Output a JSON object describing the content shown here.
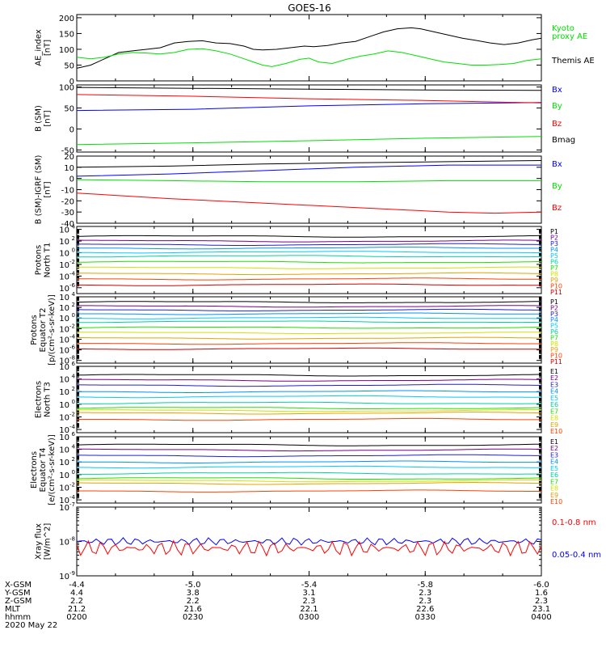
{
  "title": "GOES-16",
  "colors": {
    "black": "#000000",
    "blue": "#0000ff",
    "green": "#00e000",
    "red": "#ff0000",
    "P": [
      "#000000",
      "#7a008a",
      "#2020d0",
      "#0090ff",
      "#00c8ff",
      "#00d0a0",
      "#20e000",
      "#d0e000",
      "#e8a000",
      "#ff4000",
      "#d00000"
    ],
    "E": [
      "#000000",
      "#7a008a",
      "#2020d0",
      "#0090ff",
      "#00c8ff",
      "#00d0a0",
      "#20e000",
      "#d0e000",
      "#e8a000",
      "#ff4000",
      "#d00000"
    ]
  },
  "chart_data": [
    {
      "id": "ae",
      "type": "line",
      "ylabel": [
        "AE_index",
        "[nT]"
      ],
      "yticks": [
        "200",
        "150",
        "100",
        "50",
        "0"
      ],
      "ytick_values": [
        200,
        150,
        100,
        50,
        0
      ],
      "ylim": [
        0,
        210
      ],
      "legend": [
        {
          "text": "Kyoto",
          "color": "green"
        },
        {
          "text": "proxy AE",
          "color": "green"
        },
        {
          "text": "Themis AE",
          "color": "black"
        }
      ],
      "series": [
        {
          "name": "Themis AE",
          "color": "black",
          "points": [
            [
              0,
              40
            ],
            [
              3,
              50
            ],
            [
              6,
              70
            ],
            [
              9,
              90
            ],
            [
              12,
              95
            ],
            [
              15,
              100
            ],
            [
              18,
              105
            ],
            [
              21,
              120
            ],
            [
              24,
              125
            ],
            [
              27,
              127
            ],
            [
              30,
              120
            ],
            [
              33,
              118
            ],
            [
              36,
              110
            ],
            [
              38,
              100
            ],
            [
              40,
              98
            ],
            [
              43,
              100
            ],
            [
              46,
              105
            ],
            [
              49,
              110
            ],
            [
              51,
              108
            ],
            [
              54,
              112
            ],
            [
              57,
              120
            ],
            [
              60,
              125
            ],
            [
              63,
              140
            ],
            [
              66,
              155
            ],
            [
              69,
              165
            ],
            [
              72,
              168
            ],
            [
              74,
              165
            ],
            [
              77,
              155
            ],
            [
              80,
              145
            ],
            [
              83,
              135
            ],
            [
              86,
              128
            ],
            [
              89,
              120
            ],
            [
              92,
              115
            ],
            [
              95,
              120
            ],
            [
              98,
              130
            ],
            [
              100,
              135
            ]
          ]
        },
        {
          "name": "Kyoto proxy AE",
          "color": "green",
          "points": [
            [
              0,
              75
            ],
            [
              3,
              70
            ],
            [
              6,
              75
            ],
            [
              9,
              85
            ],
            [
              12,
              90
            ],
            [
              15,
              88
            ],
            [
              18,
              85
            ],
            [
              21,
              90
            ],
            [
              24,
              100
            ],
            [
              27,
              102
            ],
            [
              30,
              95
            ],
            [
              33,
              85
            ],
            [
              36,
              70
            ],
            [
              38,
              60
            ],
            [
              40,
              50
            ],
            [
              42,
              45
            ],
            [
              45,
              55
            ],
            [
              48,
              68
            ],
            [
              50,
              72
            ],
            [
              52,
              60
            ],
            [
              55,
              55
            ],
            [
              58,
              68
            ],
            [
              61,
              78
            ],
            [
              64,
              85
            ],
            [
              67,
              95
            ],
            [
              70,
              90
            ],
            [
              73,
              80
            ],
            [
              76,
              70
            ],
            [
              79,
              60
            ],
            [
              82,
              55
            ],
            [
              85,
              50
            ],
            [
              88,
              50
            ],
            [
              91,
              52
            ],
            [
              94,
              55
            ],
            [
              97,
              65
            ],
            [
              100,
              70
            ]
          ]
        }
      ]
    },
    {
      "id": "b",
      "type": "line",
      "ylabel": [
        "B (SM)",
        "[nT]"
      ],
      "yticks": [
        "100",
        "50",
        "0",
        "-50"
      ],
      "ytick_values": [
        100,
        50,
        0,
        -50
      ],
      "ylim": [
        -55,
        105
      ],
      "legend": [
        {
          "text": "Bx",
          "color": "blue"
        },
        {
          "text": "By",
          "color": "green"
        },
        {
          "text": "Bz",
          "color": "red"
        },
        {
          "text": "Bmag",
          "color": "black"
        }
      ],
      "series": [
        {
          "name": "Bx",
          "color": "blue",
          "points": [
            [
              0,
              44
            ],
            [
              25,
              47
            ],
            [
              50,
              55
            ],
            [
              75,
              60
            ],
            [
              100,
              63
            ]
          ]
        },
        {
          "name": "By",
          "color": "green",
          "points": [
            [
              0,
              -37
            ],
            [
              25,
              -33
            ],
            [
              50,
              -28
            ],
            [
              75,
              -22
            ],
            [
              100,
              -18
            ]
          ]
        },
        {
          "name": "Bz",
          "color": "red",
          "points": [
            [
              0,
              82
            ],
            [
              25,
              78
            ],
            [
              50,
              72
            ],
            [
              75,
              68
            ],
            [
              100,
              62
            ]
          ]
        },
        {
          "name": "Bmag",
          "color": "black",
          "points": [
            [
              0,
              99
            ],
            [
              25,
              97
            ],
            [
              50,
              95
            ],
            [
              75,
              93
            ],
            [
              100,
              92
            ]
          ]
        }
      ]
    },
    {
      "id": "bigrf",
      "type": "line",
      "ylabel": [
        "B (SM)-IGRF (SM)",
        "[nT]"
      ],
      "yticks": [
        "20",
        "10",
        "0",
        "-10",
        "-20",
        "-30",
        "-40"
      ],
      "ytick_values": [
        20,
        10,
        0,
        -10,
        -20,
        -30,
        -40
      ],
      "ylim": [
        -40,
        20
      ],
      "legend": [
        {
          "text": "Bx",
          "color": "blue"
        },
        {
          "text": "By",
          "color": "green"
        },
        {
          "text": "Bz",
          "color": "red"
        }
      ],
      "series": [
        {
          "name": "Black",
          "color": "black",
          "points": [
            [
              0,
              10
            ],
            [
              20,
              11
            ],
            [
              40,
              13
            ],
            [
              60,
              14
            ],
            [
              80,
              15
            ],
            [
              100,
              16
            ]
          ]
        },
        {
          "name": "Bx",
          "color": "blue",
          "points": [
            [
              0,
              2
            ],
            [
              20,
              4
            ],
            [
              40,
              7
            ],
            [
              60,
              10
            ],
            [
              80,
              12
            ],
            [
              100,
              12
            ]
          ]
        },
        {
          "name": "By",
          "color": "green",
          "points": [
            [
              0,
              -1
            ],
            [
              20,
              -2
            ],
            [
              40,
              -3
            ],
            [
              60,
              -3
            ],
            [
              80,
              -2
            ],
            [
              100,
              -2
            ]
          ]
        },
        {
          "name": "Bz",
          "color": "red",
          "points": [
            [
              0,
              -13
            ],
            [
              20,
              -18
            ],
            [
              40,
              -22
            ],
            [
              60,
              -26
            ],
            [
              80,
              -30
            ],
            [
              90,
              -31
            ],
            [
              100,
              -30
            ]
          ]
        }
      ]
    },
    {
      "id": "pt1",
      "type": "line",
      "log": true,
      "ylabel": [
        "Protons",
        "North T1"
      ],
      "yticks": [
        "10^4",
        "10^2",
        "10^0",
        "10^-2",
        "10^-4",
        "10^-6"
      ],
      "ylim": [
        -7,
        4.5
      ],
      "legend": [
        "P1",
        "P2",
        "P3",
        "P4",
        "P5",
        "P6",
        "P7",
        "P8",
        "P9",
        "P10",
        "P11"
      ],
      "series_levels": [
        2.8,
        2.0,
        1.4,
        0.8,
        0.1,
        -0.6,
        -1.6,
        -2.6,
        -3.6,
        -4.5,
        -5.5
      ]
    },
    {
      "id": "pt2",
      "type": "line",
      "log": true,
      "ylabel": [
        "Protons",
        "Equator T2",
        "[p/(cm²-s-sr-keV)]"
      ],
      "yticks": [
        "10^4",
        "10^2",
        "10^0",
        "10^-2",
        "10^-4",
        "10^-6",
        "10^-8"
      ],
      "ylim": [
        -8.5,
        4
      ],
      "legend": [
        "P1",
        "P2",
        "P3",
        "P4",
        "P5",
        "P6",
        "P7",
        "P8",
        "P9",
        "P10",
        "P11"
      ],
      "series_levels": [
        3.0,
        2.2,
        1.5,
        0.8,
        0.0,
        -0.7,
        -1.8,
        -2.8,
        -3.8,
        -4.8,
        -5.8
      ]
    },
    {
      "id": "et3",
      "type": "line",
      "log": true,
      "ylabel": [
        "Electrons",
        "North T3"
      ],
      "yticks": [
        "10^6",
        "10^4",
        "10^2",
        "10^0",
        "10^-2",
        "10^-4"
      ],
      "ylim": [
        -4.5,
        6
      ],
      "legend": [
        "E1",
        "E2",
        "E3",
        "E4",
        "E5",
        "E6",
        "E7",
        "E8",
        "E9",
        "E10"
      ],
      "series_levels": [
        4.6,
        3.8,
        3.0,
        2.0,
        1.2,
        0.2,
        -0.6,
        -1.0,
        -1.4,
        -2.4
      ]
    },
    {
      "id": "et4",
      "type": "line",
      "log": true,
      "ylabel": [
        "Electrons",
        "Equator T4",
        "[e/(cm²-s-sr-keV)]"
      ],
      "yticks": [
        "10^6",
        "10^4",
        "10^2",
        "10^0",
        "10^-2",
        "10^-4"
      ],
      "ylim": [
        -4.5,
        6
      ],
      "legend": [
        "E1",
        "E2",
        "E3",
        "E4",
        "E5",
        "E6",
        "E7",
        "E8",
        "E9",
        "E10"
      ],
      "series_levels": [
        4.7,
        3.9,
        3.0,
        2.0,
        1.2,
        0.2,
        -0.6,
        -1.0,
        -1.4,
        -2.6
      ]
    },
    {
      "id": "xray",
      "type": "line",
      "log": true,
      "ylabel": [
        "Xray flux",
        "[W/m^2]"
      ],
      "yticks": [
        "10^-7",
        "10^-8",
        "10^-9"
      ],
      "ylim": [
        -9,
        -7
      ],
      "legend": [
        {
          "text": "0.1-0.8 nm",
          "color": "red"
        },
        {
          "text": "0.05-0.4 nm",
          "color": "blue"
        }
      ],
      "series_levels": [
        -8.0,
        -8.2
      ]
    }
  ],
  "x_axis": {
    "row_labels": [
      "X-GSM",
      "Y-GSM",
      "Z-GSM",
      "MLT",
      "hhmm",
      "2020 May 22"
    ],
    "ticks": [
      {
        "values": [
          "-4.4",
          "4.4",
          "2.2",
          "21.2",
          "0200"
        ]
      },
      {
        "values": [
          "-5.0",
          "3.8",
          "2.2",
          "21.6",
          "0230"
        ]
      },
      {
        "values": [
          "-5.4",
          "3.1",
          "2.3",
          "22.1",
          "0300"
        ]
      },
      {
        "values": [
          "-5.8",
          "2.3",
          "2.3",
          "22.6",
          "0330"
        ]
      },
      {
        "values": [
          "-6.0",
          "1.6",
          "2.3",
          "23.1",
          "0400"
        ]
      }
    ]
  }
}
